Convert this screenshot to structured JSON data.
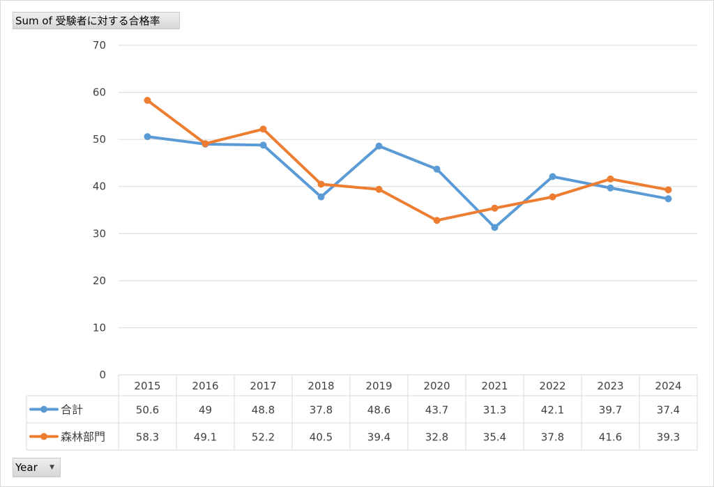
{
  "pivot": {
    "value_field_label": "Sum of 受験者に対する合格率",
    "axis_field_label": "Year",
    "dropdown_icon": "dropdown-arrow-icon"
  },
  "colors": {
    "series_1": "#5b9bd5",
    "series_2": "#ed7d31",
    "grid": "#d9d9d9",
    "text": "#404040"
  },
  "chart_data": {
    "type": "line",
    "title": "",
    "xlabel": "",
    "ylabel": "",
    "ylim": [
      0,
      70
    ],
    "yticks": [
      0,
      10,
      20,
      30,
      40,
      50,
      60,
      70
    ],
    "grid": true,
    "legend_placement": "data-table-left",
    "categories": [
      "2015",
      "2016",
      "2017",
      "2018",
      "2019",
      "2020",
      "2021",
      "2022",
      "2023",
      "2024"
    ],
    "series": [
      {
        "name": "合計",
        "color": "#5b9bd5",
        "values": [
          50.6,
          49,
          48.8,
          37.8,
          48.6,
          43.7,
          31.3,
          42.1,
          39.7,
          37.4
        ]
      },
      {
        "name": "森林部門",
        "color": "#ed7d31",
        "values": [
          58.3,
          49.1,
          52.2,
          40.5,
          39.4,
          32.8,
          35.4,
          37.8,
          41.6,
          39.3
        ]
      }
    ]
  }
}
